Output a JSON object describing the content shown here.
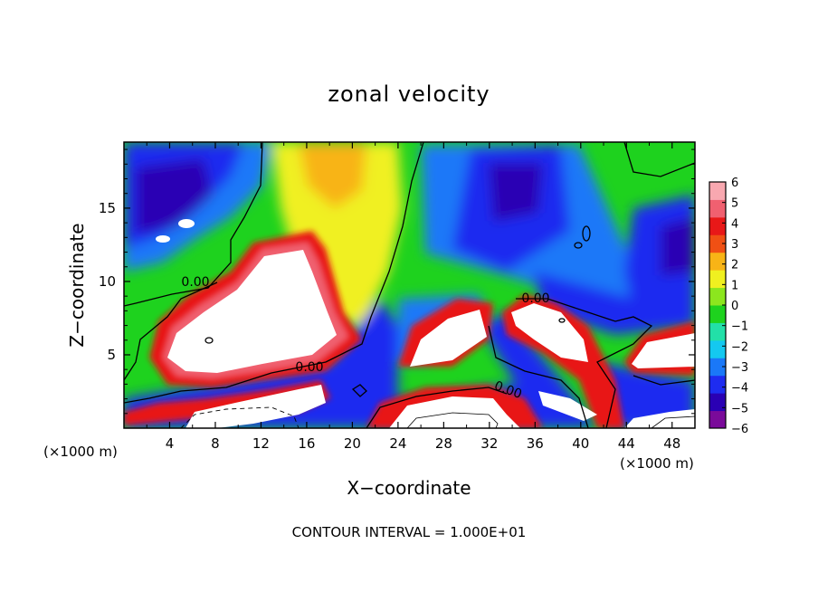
{
  "chart_data": {
    "type": "heatmap",
    "title": "zonal velocity",
    "xlabel": "X−coordinate",
    "ylabel": "Z−coordinate",
    "x_unit_left": "(×1000 m)",
    "x_unit_right": "(×1000 m)",
    "x_ticks": [
      "4",
      "8",
      "12",
      "16",
      "20",
      "24",
      "28",
      "32",
      "36",
      "40",
      "44",
      "48"
    ],
    "y_ticks": [
      "5",
      "10",
      "15"
    ],
    "xlim": [
      0,
      50
    ],
    "ylim": [
      0,
      19.5
    ],
    "colorbar": {
      "ticks": [
        "6",
        "5",
        "4",
        "3",
        "2",
        "1",
        "0",
        "−1",
        "−2",
        "−3",
        "−4",
        "−5",
        "−6"
      ],
      "range": [
        -6,
        6
      ],
      "colors": [
        "#7a0a9a",
        "#2a00b4",
        "#1e2cf0",
        "#1a78f8",
        "#14c8f0",
        "#22e0a8",
        "#1ed21e",
        "#8ce61e",
        "#f0f020",
        "#f8b416",
        "#f05014",
        "#e81818",
        "#f06070",
        "#f8a8b0"
      ]
    },
    "contour_label": "0.00",
    "footnote": "CONTOUR INTERVAL = 1.000E+01"
  }
}
